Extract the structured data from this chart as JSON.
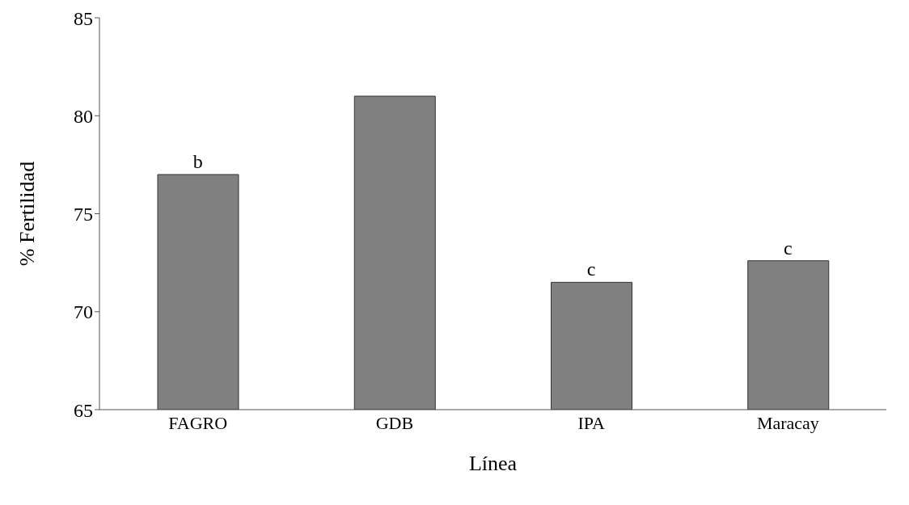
{
  "chart_data": {
    "type": "bar",
    "xlabel": "Línea",
    "ylabel": "% Fertilidad",
    "categories": [
      "FAGRO",
      "GDB",
      "IPA",
      "Maracay"
    ],
    "values": [
      77,
      81,
      71.5,
      72.6
    ],
    "color": "#808080",
    "ylim": [
      65,
      85
    ],
    "yticks": [
      65,
      70,
      75,
      80,
      85
    ],
    "grid": false,
    "annotations": [
      {
        "text": "b",
        "x": "FAGRO",
        "y": 77
      },
      {
        "text": "c",
        "x": "IPA",
        "y": 71.5
      },
      {
        "text": "c",
        "x": "Maracay",
        "y": 72.6
      }
    ]
  }
}
